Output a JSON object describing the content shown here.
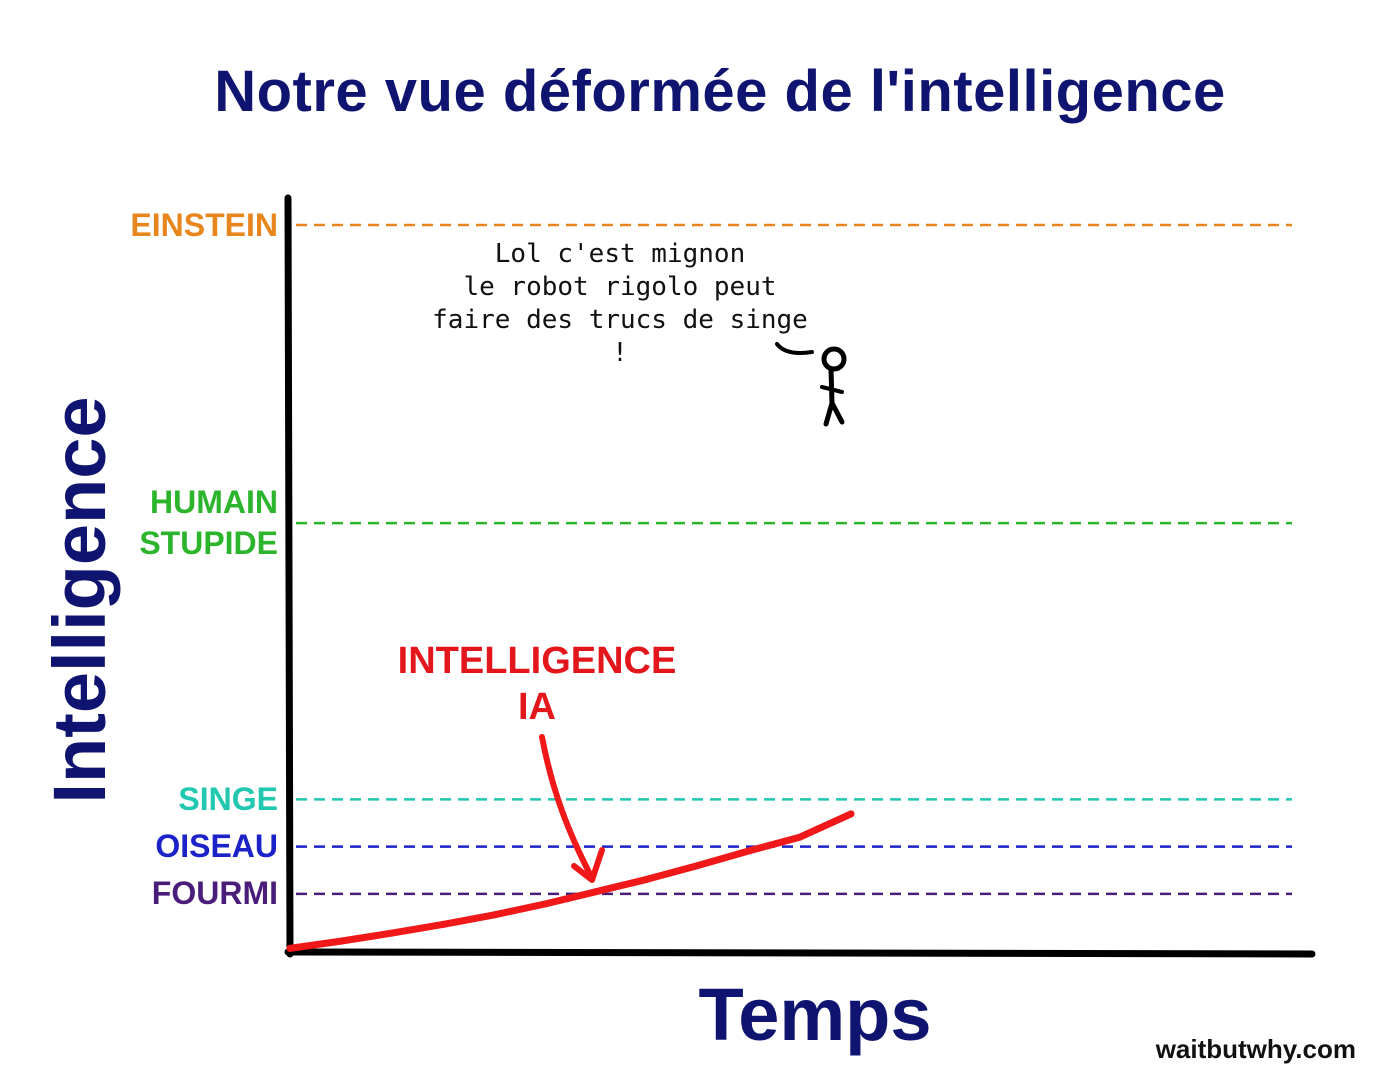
{
  "chart_data": {
    "type": "line",
    "title": "Notre vue déformée de l'intelligence",
    "xlabel": "Temps",
    "ylabel": "Intelligence",
    "levels": [
      {
        "key": "einstein",
        "lines": [
          "EINSTEIN"
        ],
        "value": 100,
        "color": "#e8861e"
      },
      {
        "key": "humain-stupide",
        "lines": [
          "HUMAIN",
          "STUPIDE"
        ],
        "value": 59,
        "color": "#2cb52c"
      },
      {
        "key": "singe",
        "lines": [
          "SINGE"
        ],
        "value": 21,
        "color": "#22c7b0"
      },
      {
        "key": "oiseau",
        "lines": [
          "OISEAU"
        ],
        "value": 14.5,
        "color": "#1a22c8"
      },
      {
        "key": "fourmi",
        "lines": [
          "FOURMI"
        ],
        "value": 8,
        "color": "#4a1d7a"
      }
    ],
    "series": [
      {
        "key": "ia",
        "color": "#f01818",
        "x": [
          0,
          5,
          10,
          15,
          20,
          25,
          30,
          35,
          40,
          45,
          50,
          55
        ],
        "y": [
          0.5,
          1.5,
          2.6,
          3.8,
          5.1,
          6.6,
          8.3,
          10.0,
          11.9,
          13.9,
          15.8,
          19.0
        ]
      }
    ],
    "annotations": {
      "ai_label": [
        "INTELLIGENCE",
        "IA"
      ],
      "speech": [
        "Lol c'est mignon",
        "le robot rigolo peut",
        "faire des trucs de singe !"
      ]
    },
    "xlim": [
      0,
      100
    ],
    "ylim": [
      0,
      100
    ],
    "grid": false,
    "legend": "none"
  },
  "credit": "waitbutwhy.com"
}
